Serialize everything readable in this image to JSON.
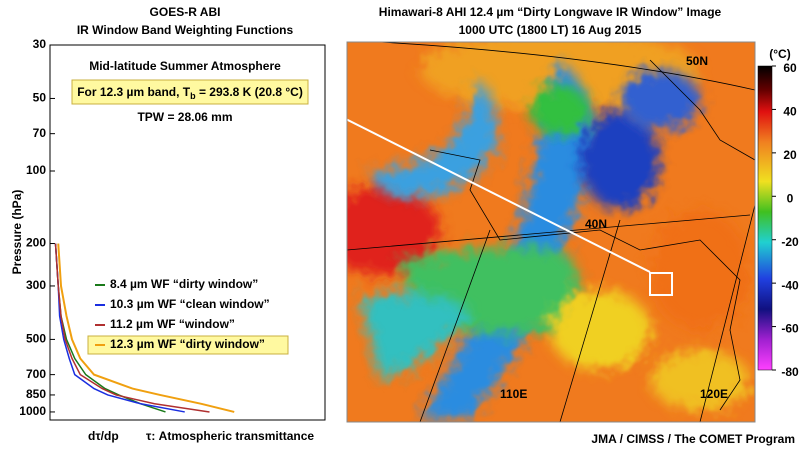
{
  "chart_data": [
    {
      "type": "line",
      "title": [
        "GOES-R ABI",
        "IR Window Band Weighting Functions"
      ],
      "y_label": "Pressure (hPa)",
      "x_label": "dτ/dp",
      "x_label_note": "τ: Atmospheric transmittance",
      "annotations": {
        "atmosphere": "Mid-latitude Summer Atmosphere",
        "brightness_temp": [
          "For 12.3 µm band, T",
          "b",
          " = 293.8 K (20.8 °C)"
        ],
        "tpw": "TPW = 28.06 mm"
      },
      "y_log": true,
      "y_inverted": true,
      "ylim": [
        30,
        1080
      ],
      "yticks": [
        30,
        50,
        70,
        100,
        200,
        300,
        500,
        700,
        850,
        1000
      ],
      "xlim": [
        0,
        1
      ],
      "y": [
        200,
        300,
        400,
        500,
        600,
        700,
        800,
        850,
        925,
        1000
      ],
      "series": [
        {
          "name": "8.4 µm WF “dirty window”",
          "color": "#1a7a1a",
          "x": [
            0.02,
            0.03,
            0.04,
            0.06,
            0.09,
            0.13,
            0.2,
            0.25,
            0.33,
            0.42
          ]
        },
        {
          "name": "10.3 µm WF “clean window”",
          "color": "#1a2ee0",
          "x": [
            0.02,
            0.03,
            0.035,
            0.05,
            0.07,
            0.09,
            0.16,
            0.21,
            0.33,
            0.49
          ]
        },
        {
          "name": "11.2 µm WF “window”",
          "color": "#b03030",
          "x": [
            0.02,
            0.03,
            0.04,
            0.055,
            0.08,
            0.11,
            0.19,
            0.24,
            0.38,
            0.58
          ]
        },
        {
          "name": "12.3 µm WF “dirty window”",
          "color": "#f0a010",
          "x": [
            0.03,
            0.04,
            0.06,
            0.08,
            0.11,
            0.16,
            0.3,
            0.4,
            0.55,
            0.67
          ],
          "highlight": true
        }
      ]
    },
    {
      "type": "image",
      "title": [
        "Himawari-8 AHI 12.4 µm “Dirty Longwave IR Window” Image",
        "1000 UTC (1800 LT)  16 Aug 2015"
      ],
      "colorbar_unit": "(°C)",
      "clim": [
        -80,
        60
      ],
      "colorbar_ticks": [
        60,
        40,
        20,
        0,
        -20,
        -40,
        -60,
        -80
      ],
      "map_labels": [
        "50N",
        "40N",
        "110E",
        "120E"
      ],
      "credit": "JMA / CIMSS / The COMET Program"
    }
  ]
}
